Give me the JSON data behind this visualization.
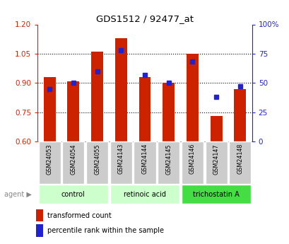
{
  "title": "GDS1512 / 92477_at",
  "samples": [
    "GSM24053",
    "GSM24054",
    "GSM24055",
    "GSM24143",
    "GSM24144",
    "GSM24145",
    "GSM24146",
    "GSM24147",
    "GSM24148"
  ],
  "red_values": [
    0.93,
    0.91,
    1.06,
    1.13,
    0.93,
    0.9,
    1.05,
    0.73,
    0.87
  ],
  "blue_values": [
    45,
    50,
    60,
    78,
    57,
    50,
    68,
    38,
    47
  ],
  "ylim_left": [
    0.6,
    1.2
  ],
  "ylim_right": [
    0,
    100
  ],
  "yticks_left": [
    0.6,
    0.75,
    0.9,
    1.05,
    1.2
  ],
  "yticks_right": [
    0,
    25,
    50,
    75,
    100
  ],
  "ytick_labels_right": [
    "0",
    "25",
    "50",
    "75",
    "100%"
  ],
  "bar_color": "#cc2200",
  "dot_color": "#2222cc",
  "bar_width": 0.5,
  "group_light_color": "#ccffcc",
  "group_dark_color": "#44dd44",
  "gray_box_color": "#cccccc",
  "agent_label": "agent",
  "legend_red": "transformed count",
  "legend_blue": "percentile rank within the sample",
  "left_tick_color": "#cc2200",
  "right_tick_color": "#2222cc",
  "groups": [
    {
      "label": "control",
      "start": 0,
      "end": 2,
      "dark": false
    },
    {
      "label": "retinoic acid",
      "start": 3,
      "end": 5,
      "dark": false
    },
    {
      "label": "trichostatin A",
      "start": 6,
      "end": 8,
      "dark": true
    }
  ]
}
